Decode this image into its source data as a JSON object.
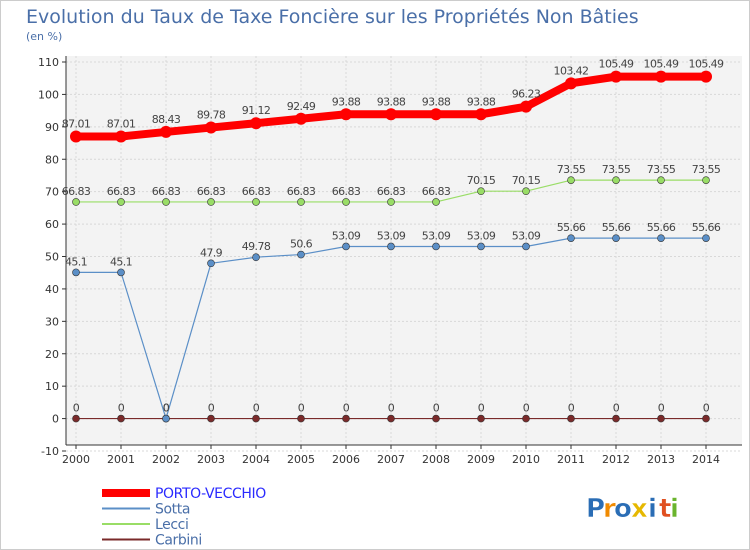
{
  "chart_data": {
    "type": "line",
    "title": "Evolution du Taux de Taxe Foncière sur les Propriétés Non Bâties",
    "ylabel": "(en %)",
    "xlabel": "",
    "ylim": [
      -10,
      110
    ],
    "yticks": [
      -10,
      0,
      10,
      20,
      30,
      40,
      50,
      60,
      70,
      80,
      90,
      100,
      110
    ],
    "grid": true,
    "legend": "bottom-left",
    "categories": [
      "2000",
      "2001",
      "2002",
      "2003",
      "2004",
      "2005",
      "2006",
      "2007",
      "2008",
      "2009",
      "2010",
      "2011",
      "2012",
      "2013",
      "2014"
    ],
    "series": [
      {
        "name": "PORTO-VECCHIO",
        "color": "#ff0000",
        "values": [
          87.01,
          87.01,
          88.43,
          89.78,
          91.12,
          92.49,
          93.88,
          93.88,
          93.88,
          93.88,
          96.23,
          103.42,
          105.49,
          105.49,
          105.49
        ],
        "labels": [
          "87.01",
          "87.01",
          "88.43",
          "89.78",
          "91.12",
          "92.49",
          "93.88",
          "93.88",
          "93.88",
          "93.88",
          "96.23",
          "103.42",
          "105.49",
          "105.49",
          "105.49"
        ]
      },
      {
        "name": "Sotta",
        "color": "#5b8fc7",
        "values": [
          45.1,
          45.1,
          0,
          47.9,
          49.78,
          50.6,
          53.09,
          53.09,
          53.09,
          53.09,
          53.09,
          55.66,
          55.66,
          55.66,
          55.66
        ],
        "labels": [
          "45.1",
          "45.1",
          "0",
          "47.9",
          "49.78",
          "50.6",
          "53.09",
          "53.09",
          "53.09",
          "53.09",
          "53.09",
          "55.66",
          "55.66",
          "55.66",
          "55.66"
        ]
      },
      {
        "name": "Lecci",
        "color": "#99dd66",
        "values": [
          66.83,
          66.83,
          66.83,
          66.83,
          66.83,
          66.83,
          66.83,
          66.83,
          66.83,
          70.15,
          70.15,
          73.55,
          73.55,
          73.55,
          73.55
        ],
        "labels": [
          "66.83",
          "66.83",
          "66.83",
          "66.83",
          "66.83",
          "66.83",
          "66.83",
          "66.83",
          "66.83",
          "70.15",
          "70.15",
          "73.55",
          "73.55",
          "73.55",
          "73.55"
        ]
      },
      {
        "name": "Carbini",
        "color": "#7a2a2a",
        "values": [
          0,
          0,
          0,
          0,
          0,
          0,
          0,
          0,
          0,
          0,
          0,
          0,
          0,
          0,
          0
        ],
        "labels": [
          "0",
          "0",
          "0",
          "0",
          "0",
          "0",
          "0",
          "0",
          "0",
          "0",
          "0",
          "0",
          "0",
          "0",
          "0"
        ]
      }
    ]
  },
  "logo": {
    "letters": [
      "P",
      "r",
      "o",
      "x",
      "i",
      "t",
      "i"
    ],
    "colors": [
      "#2a6db5",
      "#f08a00",
      "#2a6db5",
      "#e6b800",
      "#2a6db5",
      "#e05020",
      "#6ab42d"
    ]
  }
}
